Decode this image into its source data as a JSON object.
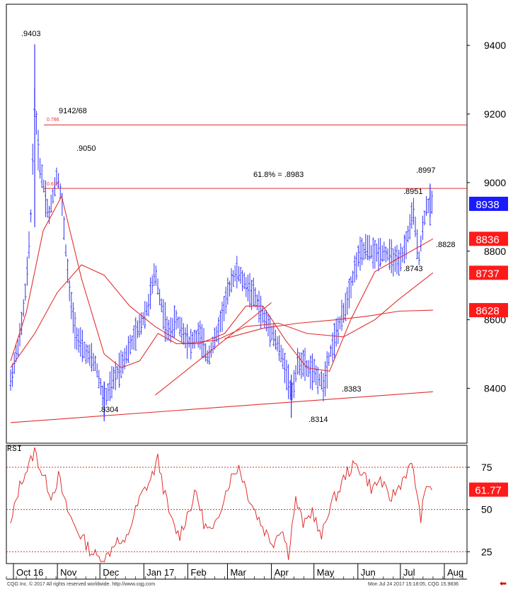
{
  "price_panel": {
    "ylim": [
      8240,
      9520
    ],
    "y_ticks": [
      8400,
      8600,
      8800,
      9000,
      9200,
      9400
    ],
    "annotations": {
      "high_oct": ".9403",
      "fib_786_level": "9142/68",
      "fib_786_ratio": "0.786",
      "fib_618_ratio": "0.618",
      "fib_618_label": "61.8% = .8983",
      "high_nov": ".9050",
      "low_dec": ".8304",
      "low_apr": ".8314",
      "low_may": ".8383",
      "high_jul_a": ".8951",
      "high_jul_b": ".8997",
      "low_jul": ".8743",
      "level_jul": ".8828"
    },
    "badges": [
      {
        "label": "8938",
        "value": 8938,
        "color": "#1a1aff"
      },
      {
        "label": "8836",
        "value": 8836,
        "color": "#ff1a1a"
      },
      {
        "label": "8737",
        "value": 8737,
        "color": "#ff1a1a"
      },
      {
        "label": "8628",
        "value": 8628,
        "color": "#ff1a1a"
      }
    ],
    "hlines": [
      9168,
      8983
    ]
  },
  "rsi_panel": {
    "label": "RSI",
    "ylim": [
      18,
      88
    ],
    "y_ticks": [
      25,
      50,
      75
    ],
    "levels": [
      25,
      50,
      75
    ],
    "current_label": "61.77",
    "current_value": 61.77,
    "current_color": "#ff1a1a"
  },
  "x_axis": {
    "months": [
      "Oct 16",
      "Nov",
      "Dec",
      "Jan 17",
      "Feb",
      "Mar",
      "Apr",
      "May",
      "Jun",
      "Jul",
      "Aug"
    ]
  },
  "footer": {
    "left": "CQG Inc. © 2017 All rights reserved worldwide. http://www.cqg.com",
    "right": "Mon Jul 24 2017 15:18:05, CQG 15.9836"
  },
  "colors": {
    "bars": "#3333ff",
    "overlay": "#e03030",
    "grid": "#e03030",
    "rsi_line": "#e03030"
  },
  "chart_data": {
    "type": "ohlc",
    "x_label_set": [
      "Oct 16",
      "Nov",
      "Dec",
      "Jan 17",
      "Feb",
      "Mar",
      "Apr",
      "May",
      "Jun",
      "Jul",
      "Aug"
    ],
    "price_keypoints": [
      [
        "2016-09-29",
        8420
      ],
      [
        "2016-10-03",
        8500
      ],
      [
        "2016-10-06",
        8560
      ],
      [
        "2016-10-10",
        8700
      ],
      [
        "2016-10-13",
        8870
      ],
      [
        "2016-10-16",
        9250
      ],
      [
        "2016-10-19",
        9060
      ],
      [
        "2016-10-22",
        9000
      ],
      [
        "2016-10-26",
        8900
      ],
      [
        "2016-11-01",
        9030
      ],
      [
        "2016-11-04",
        8950
      ],
      [
        "2016-11-07",
        8800
      ],
      [
        "2016-11-10",
        8660
      ],
      [
        "2016-11-14",
        8560
      ],
      [
        "2016-11-18",
        8520
      ],
      [
        "2016-11-22",
        8500
      ],
      [
        "2016-11-28",
        8470
      ],
      [
        "2016-12-04",
        8360
      ],
      [
        "2016-12-10",
        8420
      ],
      [
        "2016-12-16",
        8470
      ],
      [
        "2016-12-22",
        8520
      ],
      [
        "2016-12-29",
        8580
      ],
      [
        "2017-01-04",
        8640
      ],
      [
        "2017-01-09",
        8740
      ],
      [
        "2017-01-13",
        8650
      ],
      [
        "2017-01-18",
        8560
      ],
      [
        "2017-01-24",
        8600
      ],
      [
        "2017-01-29",
        8560
      ],
      [
        "2017-02-03",
        8530
      ],
      [
        "2017-02-09",
        8560
      ],
      [
        "2017-02-15",
        8490
      ],
      [
        "2017-02-21",
        8550
      ],
      [
        "2017-02-27",
        8640
      ],
      [
        "2017-03-04",
        8720
      ],
      [
        "2017-03-08",
        8740
      ],
      [
        "2017-03-14",
        8700
      ],
      [
        "2017-03-20",
        8670
      ],
      [
        "2017-03-26",
        8610
      ],
      [
        "2017-04-01",
        8570
      ],
      [
        "2017-04-06",
        8520
      ],
      [
        "2017-04-11",
        8460
      ],
      [
        "2017-04-15",
        8380
      ],
      [
        "2017-04-20",
        8480
      ],
      [
        "2017-04-26",
        8460
      ],
      [
        "2017-05-02",
        8440
      ],
      [
        "2017-05-08",
        8410
      ],
      [
        "2017-05-12",
        8500
      ],
      [
        "2017-05-17",
        8560
      ],
      [
        "2017-05-22",
        8620
      ],
      [
        "2017-05-27",
        8700
      ],
      [
        "2017-06-01",
        8780
      ],
      [
        "2017-06-07",
        8810
      ],
      [
        "2017-06-13",
        8790
      ],
      [
        "2017-06-19",
        8800
      ],
      [
        "2017-06-25",
        8780
      ],
      [
        "2017-06-30",
        8760
      ],
      [
        "2017-07-05",
        8820
      ],
      [
        "2017-07-10",
        8920
      ],
      [
        "2017-07-14",
        8780
      ],
      [
        "2017-07-19",
        8930
      ],
      [
        "2017-07-24",
        8938
      ]
    ],
    "overlay_lines": [
      {
        "name": "",
        "points": [
          [
            "2016-09-29",
            8480
          ],
          [
            "2016-10-10",
            8620
          ],
          [
            "2016-10-22",
            8860
          ],
          [
            "2016-11-04",
            8960
          ],
          [
            "2016-11-18",
            8720
          ],
          [
            "2016-12-04",
            8500
          ],
          [
            "2016-12-16",
            8460
          ],
          [
            "2016-12-29",
            8480
          ],
          [
            "2017-01-11",
            8560
          ],
          [
            "2017-01-24",
            8530
          ],
          [
            "2017-02-09",
            8530
          ],
          [
            "2017-02-27",
            8560
          ],
          [
            "2017-03-14",
            8640
          ],
          [
            "2017-03-26",
            8640
          ],
          [
            "2017-04-11",
            8540
          ],
          [
            "2017-04-26",
            8460
          ],
          [
            "2017-05-12",
            8450
          ],
          [
            "2017-05-27",
            8600
          ],
          [
            "2017-06-13",
            8740
          ],
          [
            "2017-06-30",
            8780
          ],
          [
            "2017-07-24",
            8836
          ]
        ]
      },
      {
        "name": "",
        "points": [
          [
            "2016-09-29",
            8460
          ],
          [
            "2016-10-16",
            8560
          ],
          [
            "2016-11-01",
            8680
          ],
          [
            "2016-11-18",
            8760
          ],
          [
            "2016-12-04",
            8730
          ],
          [
            "2016-12-22",
            8640
          ],
          [
            "2017-01-09",
            8580
          ],
          [
            "2017-01-29",
            8530
          ],
          [
            "2017-02-21",
            8540
          ],
          [
            "2017-03-14",
            8580
          ],
          [
            "2017-04-06",
            8590
          ],
          [
            "2017-04-26",
            8560
          ],
          [
            "2017-05-22",
            8550
          ],
          [
            "2017-06-13",
            8600
          ],
          [
            "2017-06-30",
            8660
          ],
          [
            "2017-07-24",
            8737
          ]
        ]
      },
      {
        "name": "",
        "points": [
          [
            "2017-02-27",
            8545
          ],
          [
            "2017-03-26",
            8575
          ],
          [
            "2017-04-20",
            8590
          ],
          [
            "2017-05-17",
            8600
          ],
          [
            "2017-06-07",
            8610
          ],
          [
            "2017-06-30",
            8625
          ],
          [
            "2017-07-24",
            8628
          ]
        ]
      },
      {
        "name": "",
        "points": [
          [
            "2017-01-09",
            8380
          ],
          [
            "2017-04-01",
            8650
          ]
        ]
      },
      {
        "name": "",
        "points": [
          [
            "2016-09-29",
            8300
          ],
          [
            "2017-07-24",
            8390
          ]
        ]
      }
    ],
    "rsi_keypoints": [
      [
        "2016-09-29",
        40
      ],
      [
        "2016-10-04",
        60
      ],
      [
        "2016-10-08",
        70
      ],
      [
        "2016-10-12",
        76
      ],
      [
        "2016-10-16",
        85
      ],
      [
        "2016-10-20",
        74
      ],
      [
        "2016-10-24",
        66
      ],
      [
        "2016-10-28",
        58
      ],
      [
        "2016-11-02",
        70
      ],
      [
        "2016-11-06",
        54
      ],
      [
        "2016-11-12",
        42
      ],
      [
        "2016-11-18",
        34
      ],
      [
        "2016-11-24",
        26
      ],
      [
        "2016-11-30",
        21
      ],
      [
        "2016-12-06",
        22
      ],
      [
        "2016-12-12",
        32
      ],
      [
        "2016-12-18",
        28
      ],
      [
        "2016-12-24",
        44
      ],
      [
        "2016-12-30",
        58
      ],
      [
        "2017-01-06",
        68
      ],
      [
        "2017-01-11",
        80
      ],
      [
        "2017-01-15",
        62
      ],
      [
        "2017-01-20",
        44
      ],
      [
        "2017-01-26",
        34
      ],
      [
        "2017-02-01",
        48
      ],
      [
        "2017-02-07",
        60
      ],
      [
        "2017-02-13",
        40
      ],
      [
        "2017-02-19",
        36
      ],
      [
        "2017-02-25",
        54
      ],
      [
        "2017-03-03",
        68
      ],
      [
        "2017-03-09",
        76
      ],
      [
        "2017-03-15",
        60
      ],
      [
        "2017-03-21",
        48
      ],
      [
        "2017-03-27",
        38
      ],
      [
        "2017-04-02",
        30
      ],
      [
        "2017-04-08",
        40
      ],
      [
        "2017-04-13",
        24
      ],
      [
        "2017-04-18",
        56
      ],
      [
        "2017-04-24",
        40
      ],
      [
        "2017-04-30",
        50
      ],
      [
        "2017-05-06",
        32
      ],
      [
        "2017-05-12",
        52
      ],
      [
        "2017-05-18",
        60
      ],
      [
        "2017-05-24",
        72
      ],
      [
        "2017-05-30",
        76
      ],
      [
        "2017-06-05",
        72
      ],
      [
        "2017-06-11",
        62
      ],
      [
        "2017-06-17",
        68
      ],
      [
        "2017-06-23",
        56
      ],
      [
        "2017-06-29",
        62
      ],
      [
        "2017-07-05",
        72
      ],
      [
        "2017-07-10",
        76
      ],
      [
        "2017-07-15",
        44
      ],
      [
        "2017-07-20",
        66
      ],
      [
        "2017-07-24",
        61.77
      ]
    ]
  }
}
